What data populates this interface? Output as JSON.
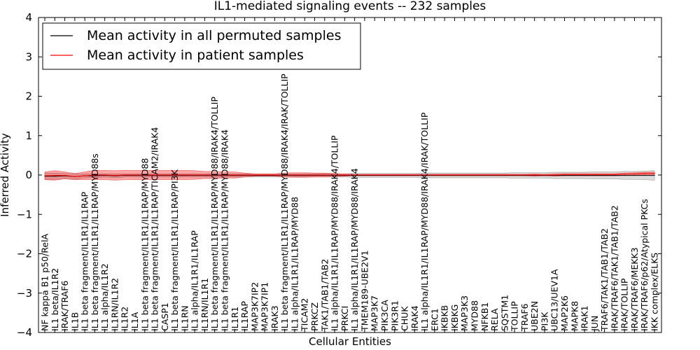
{
  "chart_data": {
    "type": "line",
    "title": "IL1-mediated signaling events -- 232 samples",
    "xlabel": "Cellular Entities",
    "ylabel": "Inferred Activity",
    "ylim": [
      -4,
      4
    ],
    "yticks": [
      "4",
      "3",
      "2",
      "1",
      "0",
      "−1",
      "−2",
      "−3",
      "−4"
    ],
    "legend_position": "upper-left",
    "categories": [
      "NF kappa B1 p50/RelA",
      "IL1 beta/IL1R2",
      "IRAK/TRAF6",
      "IL1B",
      "IL1 beta fragment/IL1R1/IL1RAP",
      "IL1 beta fragment/IL1R1/IL1RAP/MYD88s",
      "IL1 alpha/IL1R2",
      "IL1RN/IL1R2",
      "IL1R2",
      "IL1A",
      "IL1 beta fragment/IL1R1/IL1RAP/MYD88",
      "IL1 beta fragment/IL1R1/IL1RAP/TICAM2/IRAK4",
      "CASP1",
      "IL1 beta fragment/IL1R1/IL1RAP/PI3K",
      "IL1RN",
      "IL1 alpha/IL1R1/IL1RAP",
      "IL1RN/IL1R1",
      "IL1 beta fragment/IL1R1/IL1RAP/MYD88/IRAK4/TOLLIP",
      "IL1 beta fragment/IL1R1/IL1RAP/MYD88/IRAK4",
      "IL1R1",
      "IL1RAP",
      "MAP3K7IP2",
      "MAP3K7IP1",
      "IRAK3",
      "IL1 beta fragment/IL1R1/IL1RAP/MYD88/IRAK4/IRAK/TOLLIP",
      "IL1 alpha/IL1R1/IL1RAP/MYD88",
      "TICAM2",
      "PRKCZ",
      "TAK1/TAB1/TAB2",
      "IL1 alpha/IL1R1/IL1RAP/MYD88/IRAK4/TOLLIP",
      "PRKCI",
      "IL1 alpha/IL1R1/IL1RAP/MYD88/IRAK4",
      "TMEM189-UBE2V1",
      "MAP3K7",
      "PIK3CA",
      "PIK3R1",
      "CHUK",
      "IRAK4",
      "IL1 alpha/IL1R1/IL1RAP/MYD88/IRAK4/IRAK/TOLLIP",
      "ERC1",
      "IKBKB",
      "IKBKG",
      "MAP3K3",
      "MYD88",
      "NFKB1",
      "RELA",
      "SQSTM1",
      "TOLLIP",
      "TRAF6",
      "UBE2N",
      "PI3K",
      "UBC13/UEV1A",
      "MAP2K6",
      "MAPK8",
      "IRAK1",
      "JUN",
      "TRAF6/TAK1/TAB1/TAB2",
      "IRAK/TRAF6/TAK1/TAB1/TAB2",
      "IRAK/TOLLIP",
      "IRAK/TRAF6/MEKK3",
      "IRAK/TRAF6/p62/Atypical PKCs",
      "IKK complex/ELKS"
    ],
    "series": [
      {
        "name": "Mean activity in all permuted samples",
        "color": "#000000",
        "values": [
          -0.03,
          -0.03,
          -0.02,
          -0.04,
          -0.02,
          -0.02,
          -0.01,
          -0.02,
          -0.01,
          -0.01,
          -0.01,
          -0.01,
          -0.01,
          -0.01,
          -0.01,
          -0.01,
          -0.01,
          -0.01,
          -0.01,
          -0.01,
          -0.01,
          -0.01,
          -0.01,
          -0.01,
          -0.01,
          -0.01,
          -0.01,
          -0.01,
          -0.01,
          -0.01,
          -0.01,
          -0.01,
          -0.01,
          -0.01,
          -0.01,
          -0.01,
          -0.01,
          -0.01,
          -0.01,
          -0.01,
          -0.01,
          -0.01,
          -0.01,
          -0.01,
          -0.01,
          -0.01,
          -0.01,
          -0.01,
          -0.01,
          -0.01,
          -0.01,
          -0.01,
          -0.01,
          -0.01,
          -0.01,
          -0.01,
          -0.01,
          -0.01,
          -0.01,
          -0.01,
          -0.01,
          -0.01
        ],
        "band": [
          0.08,
          0.08,
          0.06,
          0.07,
          0.05,
          0.05,
          0.04,
          0.05,
          0.04,
          0.04,
          0.04,
          0.04,
          0.04,
          0.04,
          0.04,
          0.04,
          0.04,
          0.04,
          0.04,
          0.04,
          0.04,
          0.04,
          0.04,
          0.04,
          0.04,
          0.04,
          0.04,
          0.04,
          0.04,
          0.04,
          0.04,
          0.05,
          0.05,
          0.05,
          0.05,
          0.05,
          0.05,
          0.05,
          0.06,
          0.06,
          0.06,
          0.06,
          0.06,
          0.06,
          0.06,
          0.06,
          0.06,
          0.07,
          0.07,
          0.07,
          0.07,
          0.08,
          0.08,
          0.08,
          0.08,
          0.09,
          0.09,
          0.09,
          0.1,
          0.1,
          0.11,
          0.12
        ]
      },
      {
        "name": "Mean activity in patient samples",
        "color": "#ff0000",
        "values": [
          -0.02,
          -0.01,
          -0.01,
          -0.04,
          -0.02,
          0.0,
          0.0,
          -0.01,
          0.0,
          0.0,
          0.0,
          0.0,
          0.0,
          0.0,
          0.0,
          0.0,
          0.0,
          0.0,
          0.0,
          0.0,
          0.0,
          0.0,
          0.0,
          0.0,
          0.0,
          0.0,
          0.0,
          0.0,
          0.0,
          0.0,
          0.0,
          0.0,
          0.0,
          0.0,
          0.0,
          0.0,
          0.0,
          0.0,
          0.0,
          0.0,
          0.0,
          0.0,
          0.0,
          0.0,
          0.0,
          0.0,
          0.0,
          0.0,
          0.0,
          0.0,
          0.0,
          0.0,
          0.01,
          0.01,
          0.01,
          0.01,
          0.01,
          0.01,
          0.02,
          0.03,
          0.04,
          0.04
        ],
        "band": [
          0.1,
          0.12,
          0.09,
          0.08,
          0.1,
          0.12,
          0.12,
          0.12,
          0.12,
          0.12,
          0.12,
          0.12,
          0.12,
          0.12,
          0.12,
          0.11,
          0.09,
          0.09,
          0.08,
          0.08,
          0.05,
          0.03,
          0.03,
          0.03,
          0.05,
          0.06,
          0.06,
          0.05,
          0.05,
          0.04,
          0.03,
          0.02,
          0.02,
          0.02,
          0.02,
          0.02,
          0.02,
          0.02,
          0.02,
          0.02,
          0.02,
          0.02,
          0.02,
          0.02,
          0.02,
          0.02,
          0.02,
          0.02,
          0.02,
          0.03,
          0.02,
          0.03,
          0.03,
          0.03,
          0.03,
          0.03,
          0.03,
          0.03,
          0.03,
          0.03,
          0.03,
          0.03
        ]
      }
    ]
  }
}
